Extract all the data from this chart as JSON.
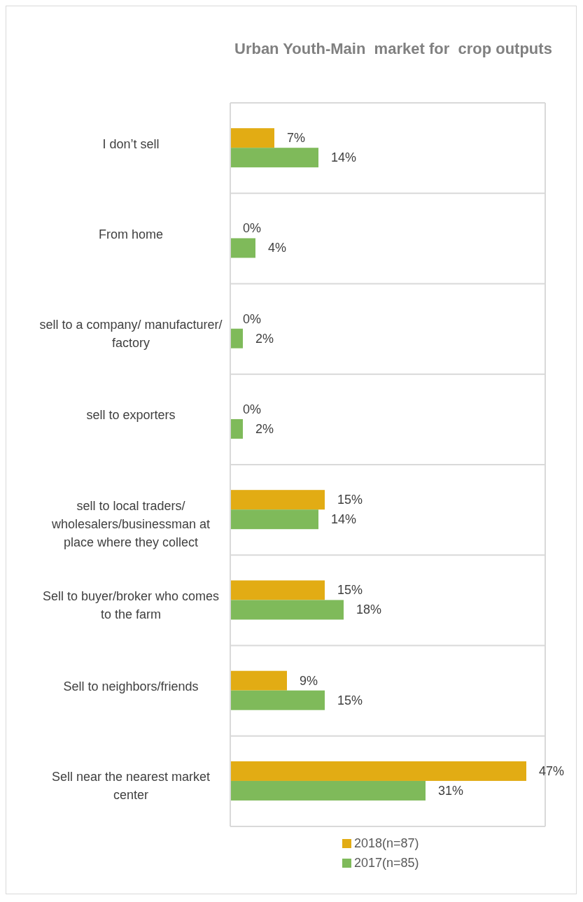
{
  "chart_data": {
    "type": "bar",
    "orientation": "horizontal",
    "title": "Urban Youth-Main  market for  crop outputs",
    "categories": [
      "I don’t sell",
      "From home",
      "sell to a company/ manufacturer/ factory",
      "sell to exporters",
      "sell to local traders/ wholesalers/businessman at place where they collect",
      "Sell to buyer/broker  who comes to the farm",
      "Sell to neighbors/friends",
      "Sell near the nearest market center"
    ],
    "series": [
      {
        "name": "2018(n=87)",
        "color": "#e2ac14",
        "values": [
          7,
          0,
          0,
          0,
          15,
          15,
          9,
          47
        ],
        "value_labels": [
          "7%",
          "0%",
          "0%",
          "0%",
          "15%",
          "15%",
          "9%",
          "47%"
        ]
      },
      {
        "name": "2017(n=85)",
        "color": "#7fba5a",
        "values": [
          14,
          4,
          2,
          2,
          14,
          18,
          15,
          31
        ],
        "value_labels": [
          "14%",
          "4%",
          "2%",
          "2%",
          "14%",
          "18%",
          "15%",
          "31%"
        ]
      }
    ],
    "tick_labels": "y",
    "grid": true,
    "legend": "bottom"
  }
}
